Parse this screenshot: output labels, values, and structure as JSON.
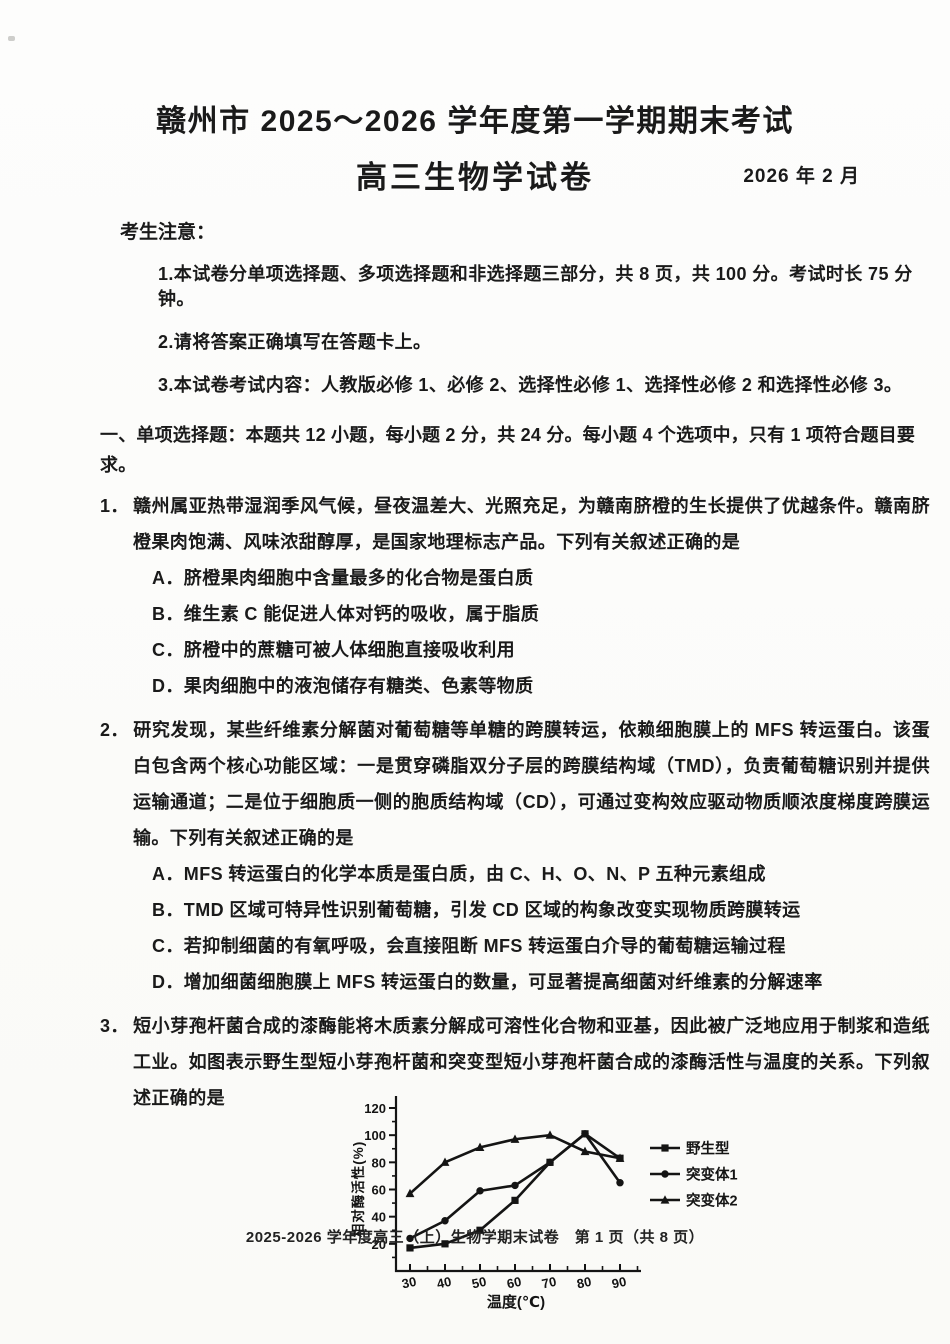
{
  "page": {
    "title_line1": "赣州市 2025～2026 学年度第一学期期末考试",
    "title_line2": "高三生物学试卷",
    "date": "2026 年 2 月",
    "notice_heading": "考生注意：",
    "notices": [
      "1.本试卷分单项选择题、多项选择题和非选择题三部分，共 8 页，共 100 分。考试时长 75 分钟。",
      "2.请将答案正确填写在答题卡上。",
      "3.本试卷考试内容：人教版必修 1、必修 2、选择性必修 1、选择性必修 2 和选择性必修 3。"
    ],
    "section_header": "一、单项选择题：本题共 12 小题，每小题 2 分，共 24 分。每小题 4 个选项中，只有 1 项符合题目要求。",
    "footer": "2025-2026 学年度高三（上）生物学期末试卷　第 1 页（共 8 页）"
  },
  "questions": [
    {
      "number": "1．",
      "stem": "赣州属亚热带湿润季风气候，昼夜温差大、光照充足，为赣南脐橙的生长提供了优越条件。赣南脐橙果肉饱满、风味浓甜醇厚，是国家地理标志产品。下列有关叙述正确的是",
      "options": [
        "A．脐橙果肉细胞中含量最多的化合物是蛋白质",
        "B．维生素 C 能促进人体对钙的吸收，属于脂质",
        "C．脐橙中的蔗糖可被人体细胞直接吸收利用",
        "D．果肉细胞中的液泡储存有糖类、色素等物质"
      ]
    },
    {
      "number": "2．",
      "stem": "研究发现，某些纤维素分解菌对葡萄糖等单糖的跨膜转运，依赖细胞膜上的 MFS 转运蛋白。该蛋白包含两个核心功能区域：一是贯穿磷脂双分子层的跨膜结构域（TMD），负责葡萄糖识别并提供运输通道；二是位于细胞质一侧的胞质结构域（CD），可通过变构效应驱动物质顺浓度梯度跨膜运输。下列有关叙述正确的是",
      "options": [
        "A．MFS 转运蛋白的化学本质是蛋白质，由 C、H、O、N、P 五种元素组成",
        "B．TMD 区域可特异性识别葡萄糖，引发 CD 区域的构象改变实现物质跨膜转运",
        "C．若抑制细菌的有氧呼吸，会直接阻断 MFS 转运蛋白介导的葡萄糖运输过程",
        "D．增加细菌细胞膜上 MFS 转运蛋白的数量，可显著提高细菌对纤维素的分解速率"
      ]
    },
    {
      "number": "3．",
      "stem": "短小芽孢杆菌合成的漆酶能将木质素分解成可溶性化合物和亚基，因此被广泛地应用于制浆和造纸工业。如图表示野生型短小芽孢杆菌和突变型短小芽孢杆菌合成的漆酶活性与温度的关系。下列叙述正确的是",
      "options": []
    }
  ],
  "chart_data": {
    "type": "line",
    "x": [
      30,
      40,
      50,
      60,
      70,
      80,
      90
    ],
    "series": [
      {
        "name": "野生型",
        "marker": "square",
        "values": [
          17,
          20,
          30,
          52,
          80,
          101,
          83
        ]
      },
      {
        "name": "突变体1",
        "marker": "circle",
        "values": [
          24,
          37,
          59,
          63,
          80,
          101,
          65
        ]
      },
      {
        "name": "突变体2",
        "marker": "triangle",
        "values": [
          57,
          80,
          91,
          97,
          100,
          88,
          83
        ]
      }
    ],
    "xlabel": "温度(℃)",
    "ylabel": "相对酶活性(%)",
    "xlim": [
      25,
      95
    ],
    "ylim": [
      0,
      120
    ],
    "xticks": [
      30,
      40,
      50,
      60,
      70,
      80,
      90
    ],
    "yticks": [
      20,
      40,
      60,
      80,
      100,
      120
    ],
    "legend_position": "right",
    "grid": false,
    "line_color": "#141414"
  }
}
